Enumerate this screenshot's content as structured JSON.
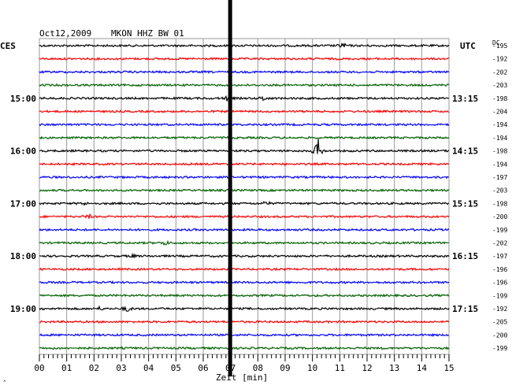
{
  "header": {
    "date": "Oct12,2009",
    "station": "MKON HHZ BW 01"
  },
  "left_axis_title": "CES",
  "right_axis_title": "UTC",
  "dc_title": "DC",
  "left_time_labels": [
    "15:00",
    "16:00",
    "17:00",
    "18:00",
    "19:00"
  ],
  "right_time_labels": [
    "13:15",
    "14:15",
    "15:15",
    "16:15",
    "17:15"
  ],
  "corner_mark": "ˆ",
  "colors": {
    "trace_cycle": [
      "#000000",
      "#ff0000",
      "#0000ff",
      "#006400"
    ],
    "grid": "#999999",
    "marker": "#000000"
  },
  "chart_data": {
    "type": "line",
    "xlabel": "Zeit [min]",
    "xlim": [
      0,
      15
    ],
    "x_ticks": [
      "00",
      "01",
      "02",
      "03",
      "04",
      "05",
      "06",
      "07",
      "08",
      "09",
      "10",
      "11",
      "12",
      "13",
      "14",
      "15"
    ],
    "dc_offsets": [
      -195,
      -192,
      -202,
      -203,
      -198,
      -204,
      -194,
      -194,
      -198,
      -194,
      -197,
      -203,
      -198,
      -200,
      -199,
      -202,
      -197,
      -196,
      -196,
      -199,
      -192,
      -205,
      -200,
      -199
    ],
    "marker_minute": 7.0,
    "events": [
      {
        "trace": 0,
        "minute": 11.1,
        "amp": 4
      },
      {
        "trace": 4,
        "minute": 6.9,
        "amp": 4
      },
      {
        "trace": 4,
        "minute": 8.2,
        "amp": 3
      },
      {
        "trace": 8,
        "minute": 10.2,
        "amp": 16
      },
      {
        "trace": 12,
        "minute": 8.3,
        "amp": 3
      },
      {
        "trace": 12,
        "minute": 1.6,
        "amp": 2
      },
      {
        "trace": 13,
        "minute": 1.8,
        "amp": 3
      },
      {
        "trace": 15,
        "minute": 4.6,
        "amp": 3
      },
      {
        "trace": 16,
        "minute": 3.4,
        "amp": 2
      },
      {
        "trace": 20,
        "minute": 3.2,
        "amp": 4
      },
      {
        "trace": 20,
        "minute": 2.2,
        "amp": 2
      }
    ]
  }
}
